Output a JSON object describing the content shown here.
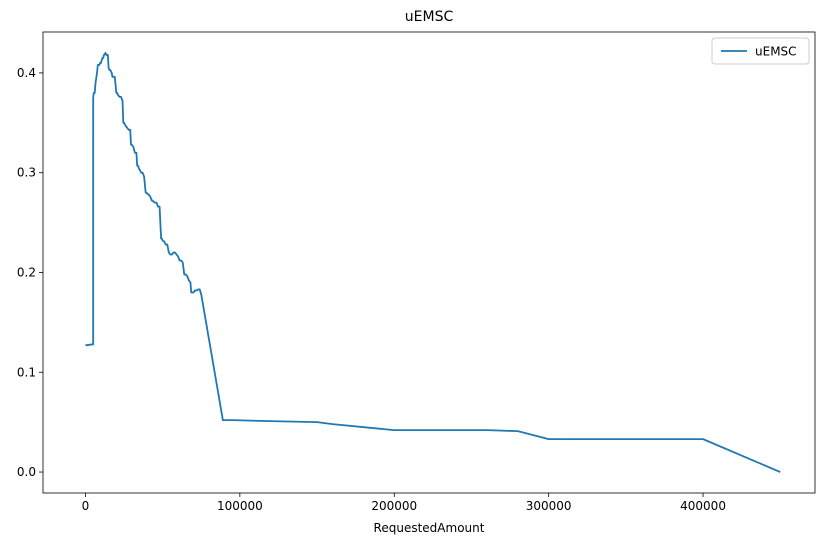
{
  "chart_data": {
    "type": "line",
    "title": "uEMSC",
    "xlabel": "RequestedAmount",
    "ylabel": "",
    "xlim": [
      -27500,
      472500
    ],
    "ylim": [
      -0.021,
      0.441
    ],
    "xticks": [
      0,
      100000,
      200000,
      300000,
      400000
    ],
    "xtick_labels": [
      "0",
      "100000",
      "200000",
      "300000",
      "400000"
    ],
    "yticks": [
      0.0,
      0.1,
      0.2,
      0.3,
      0.4
    ],
    "ytick_labels": [
      "0.0",
      "0.1",
      "0.2",
      "0.3",
      "0.4"
    ],
    "grid": false,
    "legend_position": "top-right",
    "series": [
      {
        "name": "uEMSC",
        "color": "#1f77b4",
        "x": [
          0,
          5000,
          5000,
          5400,
          6000,
          6500,
          7000,
          7500,
          8000,
          9000,
          9500,
          10000,
          11000,
          11500,
          12000,
          13000,
          13500,
          14500,
          15000,
          15500,
          16000,
          17000,
          17500,
          18000,
          19000,
          20000,
          20500,
          21000,
          22000,
          23000,
          24000,
          24500,
          25000,
          26000,
          27000,
          28000,
          29000,
          29500,
          30000,
          31000,
          32000,
          33000,
          33500,
          34000,
          35000,
          35500,
          36000,
          37000,
          38000,
          39000,
          39500,
          40000,
          41000,
          42000,
          43000,
          43500,
          44000,
          45000,
          46000,
          47000,
          48000,
          49000,
          49500,
          50000,
          51000,
          52000,
          53000,
          54000,
          55000,
          56000,
          57000,
          58000,
          59000,
          60000,
          61000,
          62000,
          63000,
          64000,
          64500,
          65000,
          66000,
          67000,
          68000,
          68500,
          69000,
          70000,
          71000,
          72000,
          73000,
          74000,
          75000,
          89000,
          95000,
          120000,
          150000,
          160000,
          200000,
          260000,
          280000,
          300000,
          400000,
          450000
        ],
        "y": [
          0.127,
          0.128,
          0.375,
          0.38,
          0.38,
          0.39,
          0.395,
          0.4,
          0.408,
          0.408,
          0.41,
          0.41,
          0.415,
          0.415,
          0.418,
          0.42,
          0.418,
          0.418,
          0.405,
          0.403,
          0.403,
          0.4,
          0.396,
          0.396,
          0.396,
          0.38,
          0.38,
          0.378,
          0.376,
          0.376,
          0.372,
          0.35,
          0.35,
          0.347,
          0.345,
          0.343,
          0.343,
          0.328,
          0.328,
          0.326,
          0.32,
          0.32,
          0.307,
          0.307,
          0.303,
          0.302,
          0.3,
          0.3,
          0.296,
          0.28,
          0.28,
          0.279,
          0.278,
          0.276,
          0.272,
          0.272,
          0.271,
          0.27,
          0.27,
          0.266,
          0.266,
          0.234,
          0.234,
          0.232,
          0.231,
          0.228,
          0.228,
          0.22,
          0.218,
          0.218,
          0.22,
          0.22,
          0.218,
          0.216,
          0.212,
          0.212,
          0.21,
          0.198,
          0.198,
          0.198,
          0.196,
          0.192,
          0.19,
          0.18,
          0.18,
          0.18,
          0.182,
          0.182,
          0.183,
          0.183,
          0.178,
          0.052,
          0.052,
          0.051,
          0.05,
          0.048,
          0.042,
          0.042,
          0.041,
          0.033,
          0.033,
          0.0
        ]
      }
    ]
  }
}
